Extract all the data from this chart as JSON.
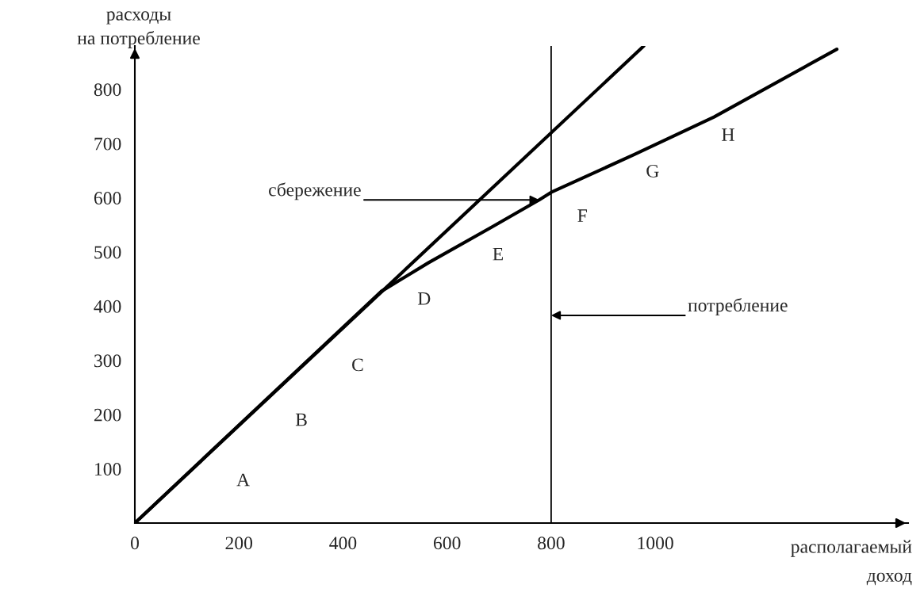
{
  "chart_data": {
    "type": "line",
    "xlabel": "располагаемый\nдоход",
    "ylabel": "расходы\nна потребление",
    "series": [
      {
        "color": "#000000",
        "x": [
          0,
          978
        ],
        "values": [
          0,
          880
        ]
      },
      {
        "color": "#000000",
        "x": [
          0,
          473,
          564,
          686,
          777,
          800,
          960,
          1113,
          1349
        ],
        "values": [
          0,
          427,
          480,
          546,
          596,
          610,
          680,
          749,
          874
        ]
      }
    ],
    "ref_lines": [
      {
        "axis": "x",
        "value": 800,
        "color": "#000000"
      }
    ],
    "annotations": [
      {
        "text": "A",
        "x": 187,
        "y": 168
      },
      {
        "text": "B",
        "x": 299,
        "y": 269
      },
      {
        "text": "C",
        "x": 407,
        "y": 366
      },
      {
        "text": "D",
        "x": 556,
        "y": 476
      },
      {
        "text": "E",
        "x": 698,
        "y": 554
      },
      {
        "text": "F",
        "x": 843,
        "y": 629
      },
      {
        "text": "G",
        "x": 995,
        "y": 695
      },
      {
        "text": "H",
        "x": 1140,
        "y": 762
      },
      {
        "text": "сбережение",
        "x": 777,
        "y": 596
      },
      {
        "text": "потребление",
        "x": 800,
        "y": 383
      }
    ],
    "xlim": [
      0,
      1486
    ],
    "ylim": [
      0,
      880
    ],
    "xticks": [
      0,
      200,
      400,
      600,
      800,
      1000
    ],
    "yticks": [
      100,
      200,
      300,
      400,
      500,
      600,
      700,
      800
    ],
    "marker": "none",
    "line_style": "solid"
  }
}
